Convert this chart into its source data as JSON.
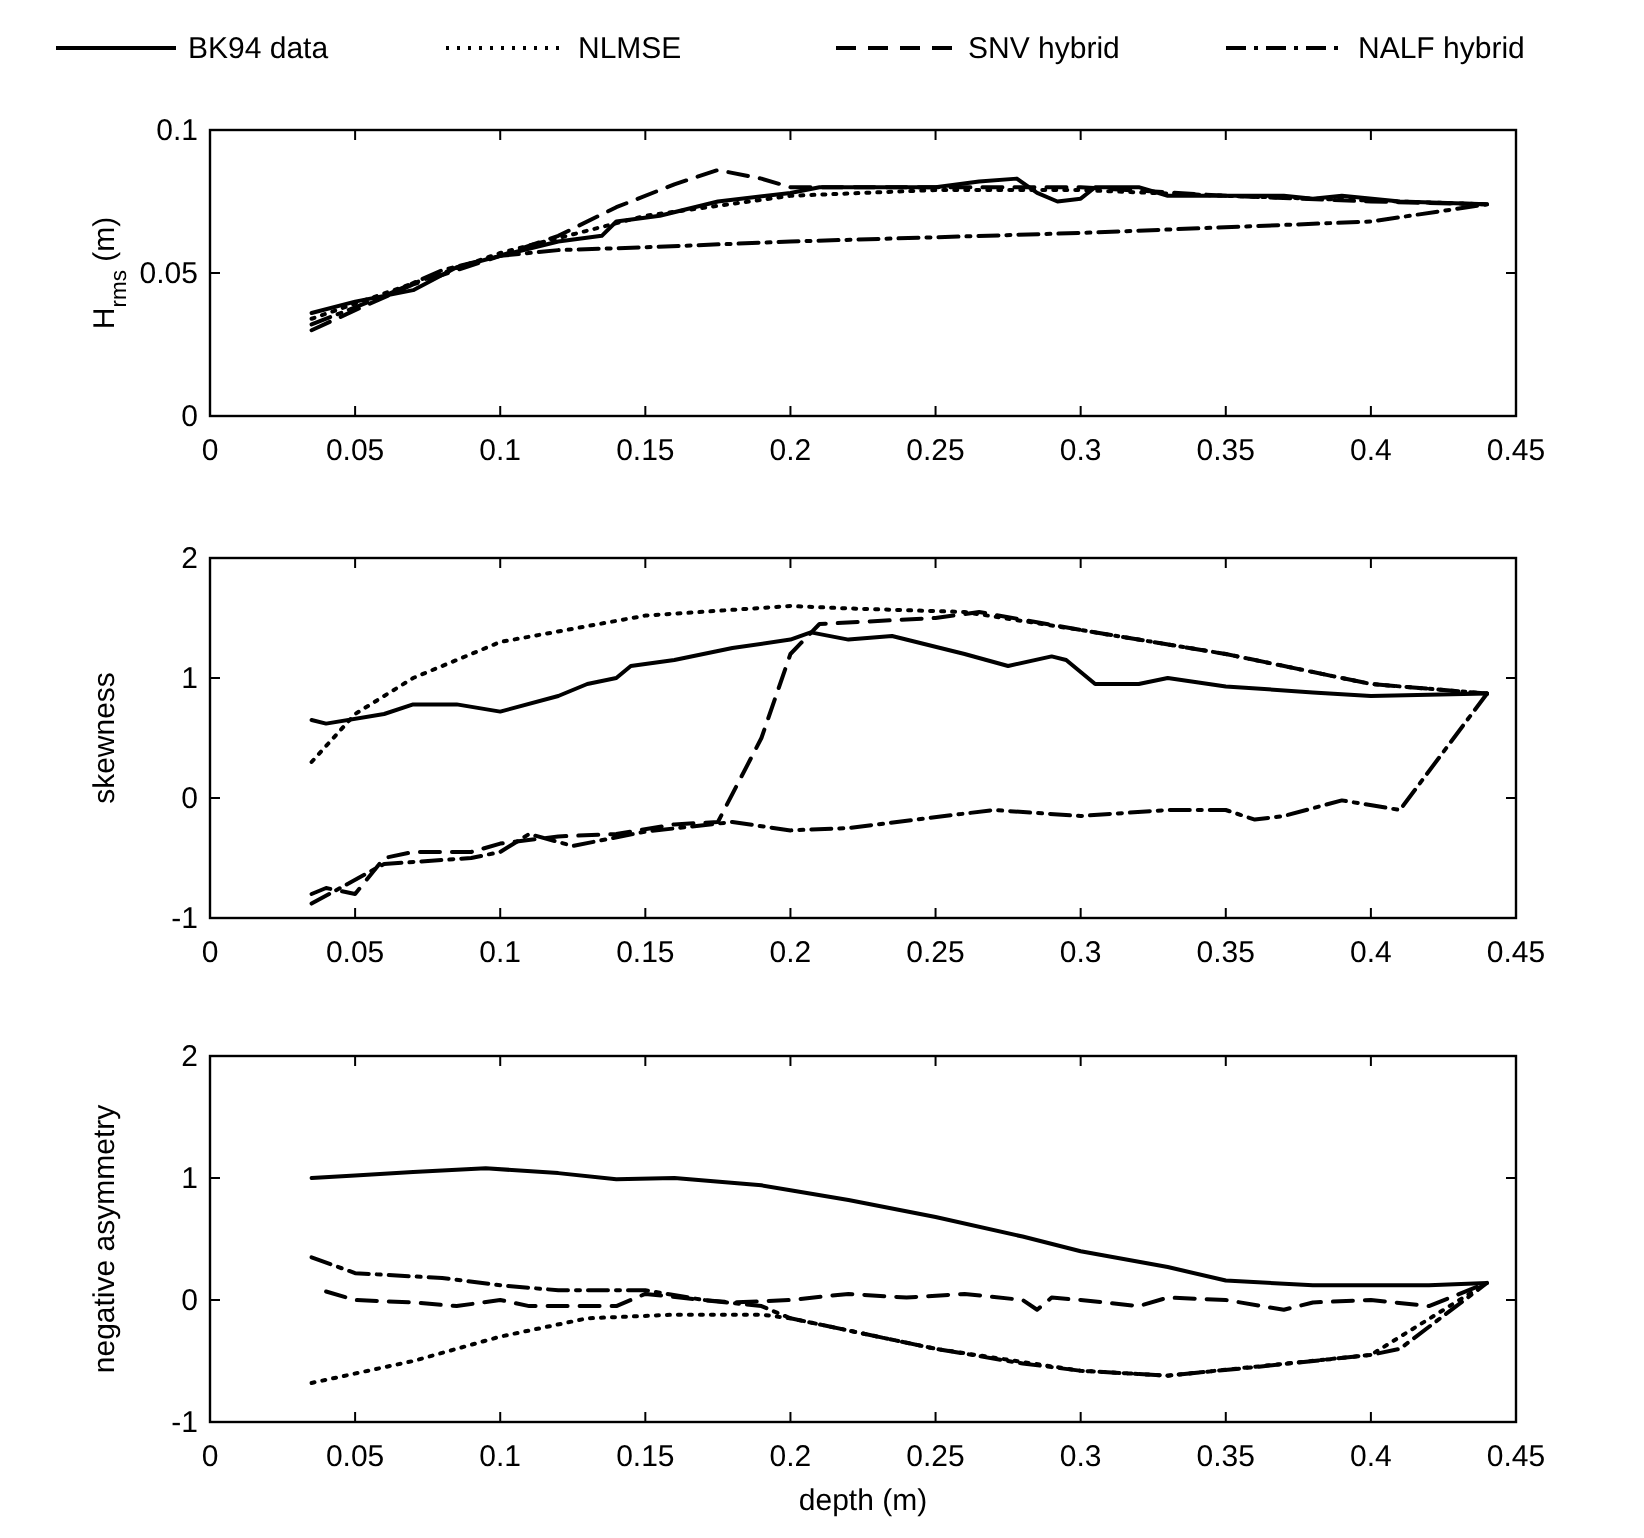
{
  "chart_data": [
    {
      "type": "line",
      "ylabel": "H$_{rms}$ (m)",
      "legend": "top",
      "xlim": [
        0,
        0.45
      ],
      "xticks": [
        0,
        0.05,
        0.1,
        0.15,
        0.2,
        0.25,
        0.3,
        0.35,
        0.4,
        0.45
      ],
      "ylim": [
        0,
        0.1
      ],
      "yticks": [
        0,
        0.05,
        0.1
      ],
      "grid": false,
      "series": [
        {
          "name": "BK94 data",
          "color": "#000000",
          "line_style": "solid",
          "x": [
            0.035,
            0.05,
            0.07,
            0.085,
            0.1,
            0.12,
            0.135,
            0.14,
            0.155,
            0.175,
            0.2,
            0.21,
            0.25,
            0.265,
            0.278,
            0.285,
            0.292,
            0.3,
            0.305,
            0.32,
            0.33,
            0.37,
            0.38,
            0.39,
            0.41,
            0.44
          ],
          "values": [
            0.036,
            0.04,
            0.044,
            0.052,
            0.056,
            0.061,
            0.063,
            0.068,
            0.07,
            0.075,
            0.078,
            0.08,
            0.08,
            0.082,
            0.083,
            0.078,
            0.075,
            0.076,
            0.08,
            0.08,
            0.077,
            0.077,
            0.076,
            0.077,
            0.075,
            0.074
          ]
        },
        {
          "name": "NLMSE",
          "color": "#000000",
          "line_style": "dotted",
          "x": [
            0.035,
            0.1,
            0.15,
            0.2,
            0.25,
            0.3,
            0.35,
            0.44
          ],
          "values": [
            0.034,
            0.057,
            0.07,
            0.077,
            0.079,
            0.079,
            0.077,
            0.074
          ]
        },
        {
          "name": "SNV hybrid",
          "color": "#000000",
          "line_style": "dashed",
          "x": [
            0.035,
            0.05,
            0.07,
            0.1,
            0.12,
            0.14,
            0.16,
            0.175,
            0.19,
            0.2,
            0.25,
            0.3,
            0.35,
            0.4,
            0.44
          ],
          "values": [
            0.03,
            0.037,
            0.046,
            0.056,
            0.063,
            0.073,
            0.081,
            0.086,
            0.083,
            0.08,
            0.08,
            0.08,
            0.077,
            0.075,
            0.074
          ]
        },
        {
          "name": "NALF hybrid",
          "color": "#000000",
          "line_style": "dashdot",
          "x": [
            0.035,
            0.06,
            0.08,
            0.1,
            0.12,
            0.15,
            0.2,
            0.3,
            0.4,
            0.44
          ],
          "values": [
            0.032,
            0.042,
            0.051,
            0.056,
            0.058,
            0.059,
            0.061,
            0.064,
            0.068,
            0.074
          ]
        }
      ]
    },
    {
      "type": "line",
      "ylabel": "skewness",
      "xlim": [
        0,
        0.45
      ],
      "xticks": [
        0,
        0.05,
        0.1,
        0.15,
        0.2,
        0.25,
        0.3,
        0.35,
        0.4,
        0.45
      ],
      "ylim": [
        -1,
        2
      ],
      "yticks": [
        -1,
        0,
        1,
        2
      ],
      "grid": false,
      "series": [
        {
          "color": "#000000",
          "line_style": "solid",
          "x": [
            0.035,
            0.04,
            0.06,
            0.07,
            0.085,
            0.1,
            0.12,
            0.13,
            0.14,
            0.145,
            0.16,
            0.18,
            0.2,
            0.207,
            0.22,
            0.235,
            0.26,
            0.275,
            0.29,
            0.295,
            0.305,
            0.32,
            0.33,
            0.35,
            0.38,
            0.4,
            0.44
          ],
          "values": [
            0.65,
            0.62,
            0.7,
            0.78,
            0.78,
            0.72,
            0.85,
            0.95,
            1.0,
            1.1,
            1.15,
            1.25,
            1.32,
            1.38,
            1.32,
            1.35,
            1.2,
            1.1,
            1.18,
            1.15,
            0.95,
            0.95,
            1.0,
            0.93,
            0.88,
            0.85,
            0.87
          ]
        },
        {
          "color": "#000000",
          "line_style": "dotted",
          "x": [
            0.035,
            0.05,
            0.07,
            0.1,
            0.15,
            0.2,
            0.22,
            0.26,
            0.3,
            0.35,
            0.4,
            0.44
          ],
          "values": [
            0.3,
            0.7,
            1.0,
            1.3,
            1.52,
            1.6,
            1.58,
            1.55,
            1.4,
            1.2,
            0.95,
            0.87
          ]
        },
        {
          "color": "#000000",
          "line_style": "dashed",
          "x": [
            0.035,
            0.04,
            0.05,
            0.06,
            0.07,
            0.09,
            0.1,
            0.12,
            0.14,
            0.16,
            0.175,
            0.19,
            0.2,
            0.21,
            0.25,
            0.265,
            0.3,
            0.35,
            0.4,
            0.44
          ],
          "values": [
            -0.8,
            -0.75,
            -0.8,
            -0.5,
            -0.45,
            -0.45,
            -0.38,
            -0.32,
            -0.3,
            -0.22,
            -0.2,
            0.5,
            1.2,
            1.45,
            1.5,
            1.55,
            1.4,
            1.2,
            0.95,
            0.87
          ]
        },
        {
          "color": "#000000",
          "line_style": "dashdot",
          "x": [
            0.035,
            0.06,
            0.09,
            0.1,
            0.11,
            0.125,
            0.15,
            0.18,
            0.2,
            0.22,
            0.27,
            0.3,
            0.33,
            0.35,
            0.36,
            0.37,
            0.39,
            0.41,
            0.44
          ],
          "values": [
            -0.88,
            -0.55,
            -0.5,
            -0.45,
            -0.3,
            -0.4,
            -0.28,
            -0.2,
            -0.27,
            -0.25,
            -0.1,
            -0.15,
            -0.1,
            -0.1,
            -0.18,
            -0.15,
            -0.02,
            -0.1,
            0.87
          ]
        }
      ]
    },
    {
      "type": "line",
      "xlabel": "depth (m)",
      "ylabel": "negative asymmetry",
      "xlim": [
        0,
        0.45
      ],
      "xticks": [
        0,
        0.05,
        0.1,
        0.15,
        0.2,
        0.25,
        0.3,
        0.35,
        0.4,
        0.45
      ],
      "ylim": [
        -1,
        2
      ],
      "yticks": [
        -1,
        0,
        1,
        2
      ],
      "grid": false,
      "series": [
        {
          "color": "#000000",
          "line_style": "solid",
          "x": [
            0.035,
            0.05,
            0.07,
            0.095,
            0.12,
            0.14,
            0.16,
            0.19,
            0.2,
            0.22,
            0.25,
            0.28,
            0.3,
            0.33,
            0.35,
            0.38,
            0.4,
            0.42,
            0.44
          ],
          "values": [
            1.0,
            1.02,
            1.05,
            1.08,
            1.04,
            0.99,
            1.0,
            0.94,
            0.9,
            0.82,
            0.68,
            0.52,
            0.4,
            0.27,
            0.16,
            0.12,
            0.12,
            0.12,
            0.14
          ]
        },
        {
          "color": "#000000",
          "line_style": "dotted",
          "x": [
            0.035,
            0.07,
            0.1,
            0.13,
            0.16,
            0.19,
            0.2,
            0.25,
            0.3,
            0.33,
            0.4,
            0.44
          ],
          "values": [
            -0.68,
            -0.5,
            -0.3,
            -0.15,
            -0.12,
            -0.12,
            -0.15,
            -0.4,
            -0.58,
            -0.62,
            -0.45,
            0.14
          ]
        },
        {
          "color": "#000000",
          "line_style": "dashed",
          "x": [
            0.04,
            0.05,
            0.07,
            0.085,
            0.1,
            0.11,
            0.14,
            0.15,
            0.17,
            0.18,
            0.2,
            0.22,
            0.24,
            0.26,
            0.28,
            0.285,
            0.29,
            0.3,
            0.32,
            0.33,
            0.35,
            0.37,
            0.38,
            0.4,
            0.42,
            0.44
          ],
          "values": [
            0.07,
            0.0,
            -0.02,
            -0.05,
            0.0,
            -0.05,
            -0.05,
            0.05,
            0.0,
            -0.02,
            0.0,
            0.05,
            0.02,
            0.05,
            0.0,
            -0.08,
            0.02,
            0.0,
            -0.05,
            0.02,
            0.0,
            -0.08,
            -0.02,
            0.0,
            -0.05,
            0.14
          ]
        },
        {
          "color": "#000000",
          "line_style": "dashdot",
          "x": [
            0.035,
            0.05,
            0.08,
            0.1,
            0.12,
            0.15,
            0.17,
            0.19,
            0.2,
            0.22,
            0.25,
            0.28,
            0.3,
            0.33,
            0.36,
            0.4,
            0.41,
            0.44
          ],
          "values": [
            0.35,
            0.22,
            0.18,
            0.12,
            0.08,
            0.08,
            0.0,
            -0.05,
            -0.15,
            -0.25,
            -0.4,
            -0.52,
            -0.58,
            -0.62,
            -0.55,
            -0.45,
            -0.4,
            0.14
          ]
        }
      ]
    }
  ]
}
